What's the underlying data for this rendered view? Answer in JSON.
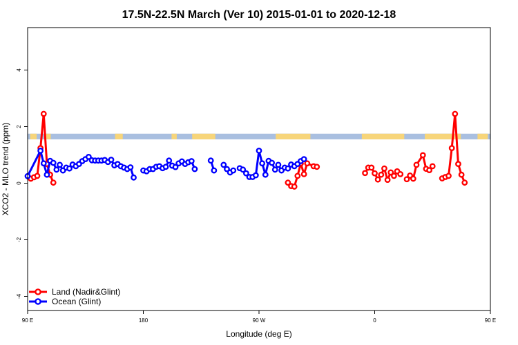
{
  "chart_data": {
    "type": "line",
    "title": "17.5N-22.5N March (Ver 10)   2015-01-01 to 2020-12-18",
    "xlabel": "Longitude (deg E)",
    "ylabel": "XCO2 - MLO trend (ppm)",
    "xlim": [
      90,
      450
    ],
    "ylim": [
      -4.5,
      5.5
    ],
    "xticks": [
      {
        "value": 90,
        "label": "90 E"
      },
      {
        "value": 180,
        "label": "180"
      },
      {
        "value": 270,
        "label": "90 W"
      },
      {
        "value": 360,
        "label": "0"
      },
      {
        "value": 450,
        "label": "90 E"
      },
      {
        "value": 540,
        "label": "180"
      }
    ],
    "yticks": [
      -4,
      -2,
      0,
      2,
      4
    ],
    "legend_position": "bottom-left",
    "surface_band": {
      "y_range": [
        1.55,
        1.75
      ],
      "colors": {
        "ocean": "#a9bfe0",
        "land": "#f7d57a"
      },
      "land_ranges": [
        [
          92,
          97
        ],
        [
          104,
          108
        ],
        [
          158,
          164
        ],
        [
          202,
          206
        ],
        [
          218,
          236
        ],
        [
          283,
          310
        ],
        [
          350,
          383
        ],
        [
          399,
          427
        ],
        [
          440,
          448
        ],
        [
          494,
          498
        ],
        [
          526,
          534
        ]
      ]
    },
    "series": [
      {
        "name": "Land (Nadir&Glint)",
        "color": "#ff0000",
        "segments": [
          [
            [
              92.5,
              0.16
            ],
            [
              95,
              0.21
            ],
            [
              97.5,
              0.26
            ],
            [
              100,
              1.24
            ],
            [
              102.5,
              2.45
            ],
            [
              105,
              0.68
            ],
            [
              107.5,
              0.3
            ],
            [
              110,
              0.02
            ]
          ],
          [
            [
              292.5,
              0.02
            ],
            [
              295,
              -0.1
            ],
            [
              297.5,
              -0.12
            ],
            [
              300,
              0.26
            ],
            [
              302.5,
              0.7
            ],
            [
              305,
              0.32
            ],
            [
              307.5,
              0.7
            ],
            [
              312.5,
              0.6
            ],
            [
              315,
              0.58
            ]
          ],
          [
            [
              352.5,
              0.36
            ],
            [
              355,
              0.55
            ],
            [
              357.5,
              0.55
            ],
            [
              360,
              0.35
            ],
            [
              362.5,
              0.13
            ],
            [
              365,
              0.3
            ],
            [
              367.5,
              0.52
            ],
            [
              370,
              0.12
            ],
            [
              372.5,
              0.38
            ],
            [
              375,
              0.26
            ],
            [
              377.5,
              0.42
            ],
            [
              380,
              0.32
            ]
          ],
          [
            [
              385,
              0.14
            ],
            [
              387.5,
              0.27
            ],
            [
              390,
              0.16
            ],
            [
              392.5,
              0.65
            ],
            [
              397.5,
              0.99
            ],
            [
              400,
              0.51
            ],
            [
              402.5,
              0.46
            ],
            [
              405,
              0.6
            ]
          ],
          [
            [
              412.5,
              0.17
            ],
            [
              415,
              0.22
            ],
            [
              417.5,
              0.26
            ],
            [
              420,
              1.24
            ],
            [
              422.5,
              2.45
            ],
            [
              425,
              0.68
            ],
            [
              427.5,
              0.3
            ],
            [
              430,
              0.02
            ]
          ]
        ]
      },
      {
        "name": "Ocean (Glint)",
        "color": "#0000ff",
        "segments": [
          [
            [
              90,
              0.25
            ],
            [
              100,
              1.15
            ],
            [
              102.5,
              0.7
            ],
            [
              105,
              0.3
            ],
            [
              107.5,
              0.79
            ],
            [
              110,
              0.72
            ],
            [
              112.5,
              0.48
            ],
            [
              115,
              0.65
            ],
            [
              117.5,
              0.45
            ],
            [
              120,
              0.55
            ],
            [
              122.5,
              0.52
            ],
            [
              125,
              0.66
            ],
            [
              127.5,
              0.6
            ],
            [
              130,
              0.68
            ],
            [
              132.5,
              0.78
            ],
            [
              135,
              0.85
            ],
            [
              137.5,
              0.93
            ],
            [
              140,
              0.81
            ],
            [
              142.5,
              0.8
            ],
            [
              145,
              0.8
            ],
            [
              147.5,
              0.8
            ],
            [
              150,
              0.82
            ],
            [
              152.5,
              0.75
            ],
            [
              155,
              0.83
            ],
            [
              157.5,
              0.63
            ],
            [
              160,
              0.68
            ],
            [
              162.5,
              0.6
            ],
            [
              165,
              0.55
            ],
            [
              167.5,
              0.5
            ],
            [
              170,
              0.56
            ],
            [
              172.5,
              0.2
            ]
          ],
          [
            [
              180,
              0.45
            ],
            [
              182.5,
              0.42
            ],
            [
              185,
              0.5
            ],
            [
              187.5,
              0.5
            ],
            [
              190,
              0.58
            ],
            [
              192.5,
              0.6
            ],
            [
              195,
              0.53
            ],
            [
              197.5,
              0.58
            ],
            [
              200,
              0.8
            ],
            [
              202.5,
              0.62
            ],
            [
              205,
              0.57
            ],
            [
              207.5,
              0.7
            ],
            [
              210,
              0.77
            ],
            [
              212.5,
              0.68
            ],
            [
              215,
              0.74
            ],
            [
              217.5,
              0.78
            ],
            [
              220,
              0.5
            ]
          ],
          [
            [
              232.5,
              0.8
            ],
            [
              235,
              0.45
            ]
          ],
          [
            [
              242.5,
              0.65
            ],
            [
              245,
              0.5
            ],
            [
              247.5,
              0.38
            ],
            [
              250,
              0.45
            ]
          ],
          [
            [
              255,
              0.53
            ],
            [
              257.5,
              0.48
            ],
            [
              260,
              0.35
            ],
            [
              262.5,
              0.22
            ],
            [
              265,
              0.22
            ],
            [
              267.5,
              0.28
            ],
            [
              270,
              1.15
            ],
            [
              272.5,
              0.7
            ],
            [
              275,
              0.3
            ],
            [
              277.5,
              0.79
            ],
            [
              280,
              0.72
            ],
            [
              282.5,
              0.48
            ],
            [
              285,
              0.65
            ],
            [
              287.5,
              0.45
            ],
            [
              290,
              0.55
            ],
            [
              292.5,
              0.52
            ],
            [
              295,
              0.66
            ],
            [
              297.5,
              0.6
            ],
            [
              300,
              0.68
            ],
            [
              302.5,
              0.78
            ],
            [
              305,
              0.85
            ]
          ]
        ]
      }
    ]
  }
}
